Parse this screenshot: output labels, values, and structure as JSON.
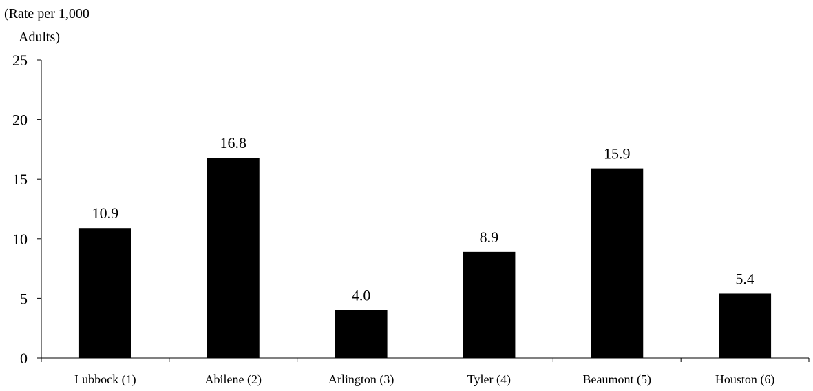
{
  "chart_data": {
    "type": "bar",
    "title": "",
    "xlabel": "",
    "ylabel_lines": [
      "(Rate per 1,000",
      "Adults)"
    ],
    "categories": [
      "Lubbock (1)",
      "Abilene (2)",
      "Arlington (3)",
      "Tyler (4)",
      "Beaumont (5)",
      "Houston (6)"
    ],
    "values": [
      10.9,
      16.8,
      4.0,
      8.9,
      15.9,
      5.4
    ],
    "data_labels": [
      "10.9",
      "16.8",
      "4.0",
      "8.9",
      "15.9",
      "5.4"
    ],
    "ylim": [
      0,
      25
    ],
    "yticks": [
      0,
      5,
      10,
      15,
      20,
      25
    ],
    "grid": false,
    "legend": "none",
    "bar_color": "#000000"
  }
}
